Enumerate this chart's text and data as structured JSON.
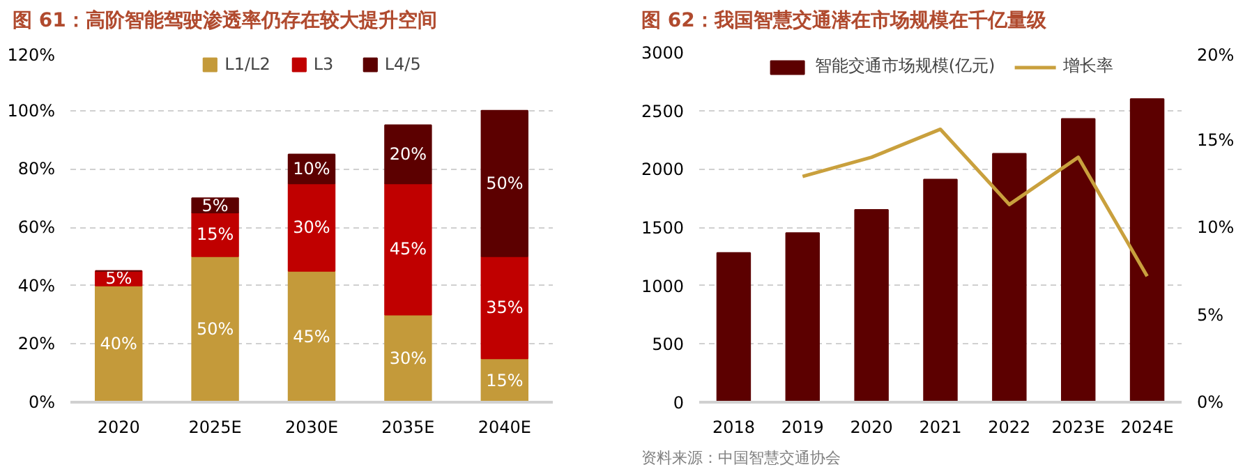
{
  "chart_data": [
    {
      "type": "bar",
      "title": "图 61：高阶智能驾驶渗透率仍存在较大提升空间",
      "categories": [
        "2020",
        "2025E",
        "2030E",
        "2035E",
        "2040E"
      ],
      "stacked": true,
      "series": [
        {
          "name": "L1/L2",
          "color": "#c49a3a",
          "values": [
            40,
            50,
            45,
            30,
            15
          ],
          "value_labels": [
            "40%",
            "50%",
            "45%",
            "30%",
            "15%"
          ]
        },
        {
          "name": "L3",
          "color": "#c00000",
          "values": [
            5,
            15,
            30,
            45,
            35
          ],
          "value_labels": [
            "5%",
            "15%",
            "30%",
            "45%",
            "35%"
          ]
        },
        {
          "name": "L4/5",
          "color": "#5c0000",
          "values": [
            0,
            5,
            10,
            20,
            50
          ],
          "value_labels": [
            null,
            "5%",
            "10%",
            "20%",
            "50%"
          ]
        }
      ],
      "ylim": [
        0,
        120
      ],
      "yticks": [
        {
          "value": 0,
          "label": "0%"
        },
        {
          "value": 20,
          "label": "20%"
        },
        {
          "value": 40,
          "label": "40%"
        },
        {
          "value": 60,
          "label": "60%"
        },
        {
          "value": 80,
          "label": "80%"
        },
        {
          "value": 100,
          "label": "100%"
        },
        {
          "value": 120,
          "label": "120%"
        }
      ],
      "grid": "y",
      "legend": "top"
    },
    {
      "type": "bar",
      "title": "图 62：我国智慧交通潜在市场规模在千亿量级",
      "categories": [
        "2018",
        "2019",
        "2020",
        "2021",
        "2022",
        "2023E",
        "2024E"
      ],
      "series": [
        {
          "name": "智能交通市场规模(亿元)",
          "color": "#5c0000",
          "values": [
            1280,
            1450,
            1650,
            1910,
            2130,
            2430,
            2600
          ]
        },
        {
          "name": "增长率",
          "type": "line",
          "axis": "y2",
          "color": "#c9a03d",
          "values": [
            null,
            12.9,
            14.0,
            15.6,
            11.3,
            14.0,
            7.2
          ]
        }
      ],
      "ylim": [
        0,
        3000
      ],
      "yticks": [
        0,
        500,
        1000,
        1500,
        2000,
        2500,
        3000
      ],
      "y2lim": [
        0,
        20
      ],
      "y2ticks": [
        {
          "value": 0,
          "label": "0%"
        },
        {
          "value": 5,
          "label": "5%"
        },
        {
          "value": 10,
          "label": "10%"
        },
        {
          "value": 15,
          "label": "15%"
        },
        {
          "value": 20,
          "label": "20%"
        }
      ],
      "grid": "y",
      "legend": "top",
      "marker": "none",
      "line_style": "solid",
      "annotations": [
        "资料来源：中国智慧交通协会"
      ]
    }
  ]
}
